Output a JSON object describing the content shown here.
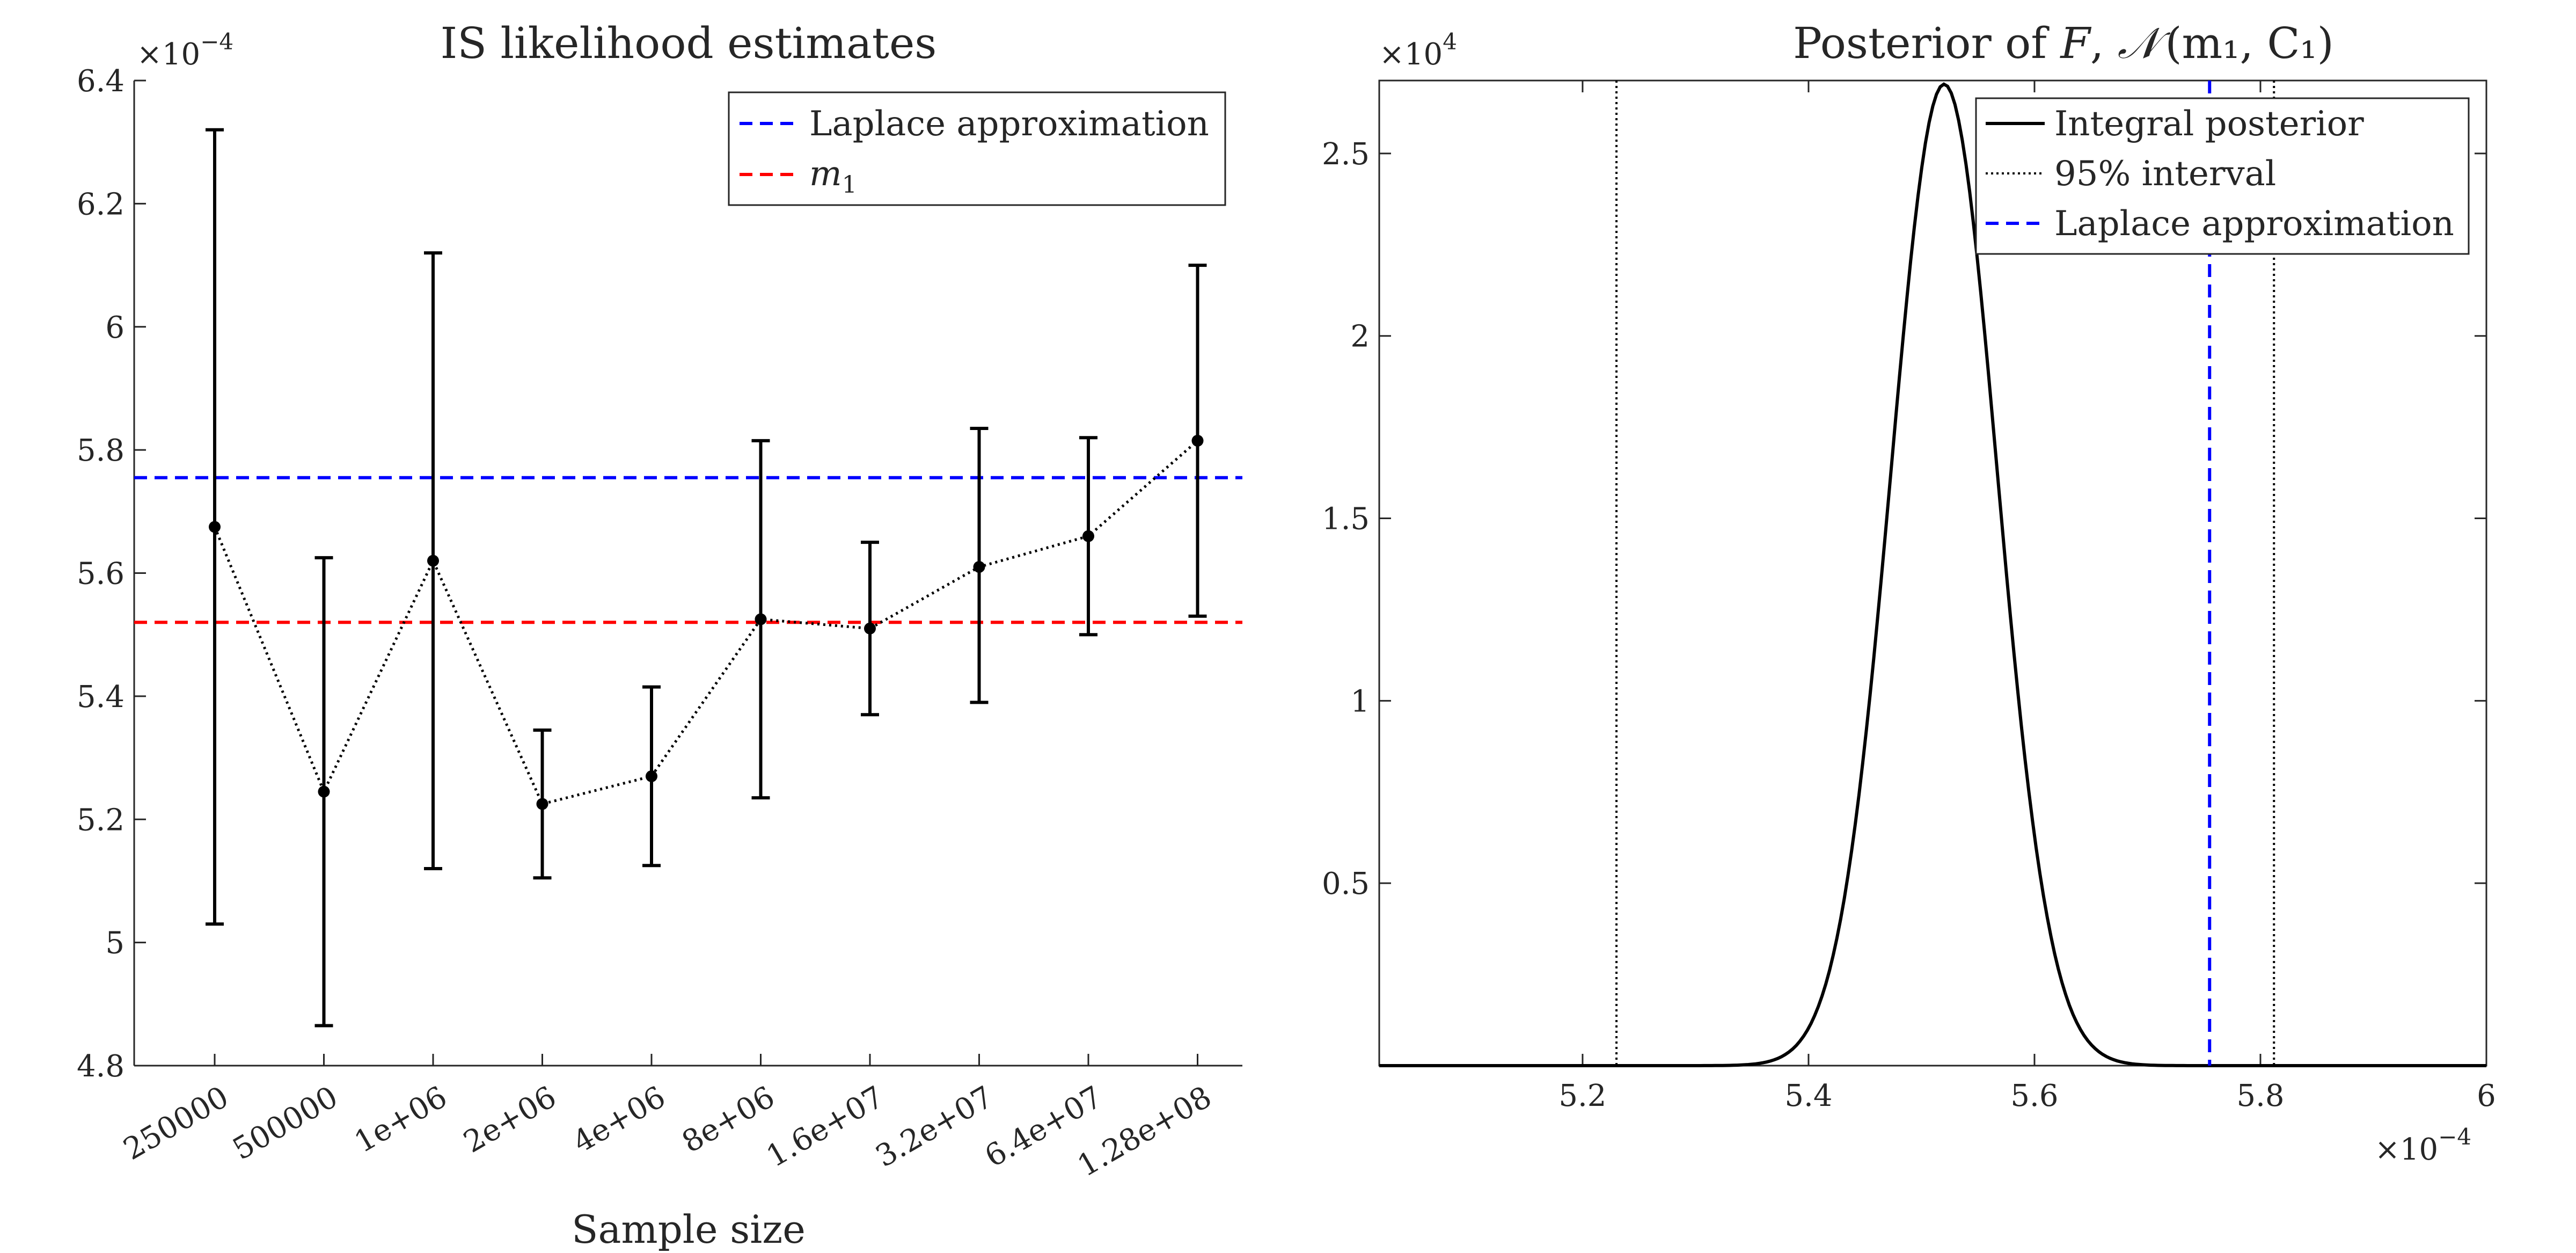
{
  "chart_data": [
    {
      "type": "errorbar-line",
      "title": "IS likelihood estimates",
      "xlabel": "Sample size",
      "ylabel": "",
      "y_exponent_label": "×10",
      "y_exponent_power": "−4",
      "categories": [
        "250000",
        "500000",
        "1e+06",
        "2e+06",
        "4e+06",
        "8e+06",
        "1.6e+07",
        "3.2e+07",
        "6.4e+07",
        "1.28e+08"
      ],
      "values": [
        5.675,
        5.245,
        5.62,
        5.225,
        5.27,
        5.525,
        5.51,
        5.61,
        5.66,
        5.815
      ],
      "error_low": [
        5.03,
        4.865,
        5.12,
        5.105,
        5.125,
        5.235,
        5.37,
        5.39,
        5.5,
        5.53
      ],
      "error_high": [
        6.32,
        5.625,
        6.12,
        5.345,
        5.415,
        5.815,
        5.65,
        5.835,
        5.82,
        6.1
      ],
      "ylim": [
        4.8,
        6.4
      ],
      "yticks": [
        "4.8",
        "5",
        "5.2",
        "5.4",
        "5.6",
        "5.8",
        "6",
        "6.2",
        "6.4"
      ],
      "hlines": [
        {
          "name": "Laplace approximation",
          "value": 5.755,
          "color": "#0000ff",
          "style": "dashed"
        },
        {
          "name": "m",
          "subscript": "1",
          "value": 5.52,
          "color": "#ff0000",
          "style": "dashed"
        }
      ],
      "series_style": {
        "color": "#000000",
        "line": "dotted",
        "marker": "dot"
      },
      "grid": false,
      "legend": "top-right"
    },
    {
      "type": "line",
      "title_text": "Posterior of ",
      "title_var": "F",
      "title_dist": "𝒩",
      "title_args": "(m₁, C₁)",
      "xlabel": "",
      "ylabel": "",
      "x_exponent_label": "×10",
      "x_exponent_power": "−4",
      "y_exponent_label": "×10",
      "y_exponent_power": "4",
      "xlim": [
        5.02,
        6.0
      ],
      "ylim": [
        0,
        2.7
      ],
      "xticks": [
        "5.2",
        "5.4",
        "5.6",
        "5.8",
        "6"
      ],
      "yticks": [
        "0.5",
        "1",
        "1.5",
        "2",
        "2.5"
      ],
      "series": [
        {
          "name": "Integral posterior",
          "color": "#000000",
          "style": "solid",
          "peak_x": 5.52,
          "peak_y": 2.69,
          "sigma": 0.1485
        }
      ],
      "vlines": [
        {
          "name": "95% interval",
          "values": [
            5.23,
            5.812
          ],
          "color": "#000000",
          "style": "dotted"
        },
        {
          "name": "Laplace approximation",
          "values": [
            5.755
          ],
          "color": "#0000ff",
          "style": "dashed"
        }
      ],
      "grid": false,
      "legend": "top-right"
    }
  ]
}
